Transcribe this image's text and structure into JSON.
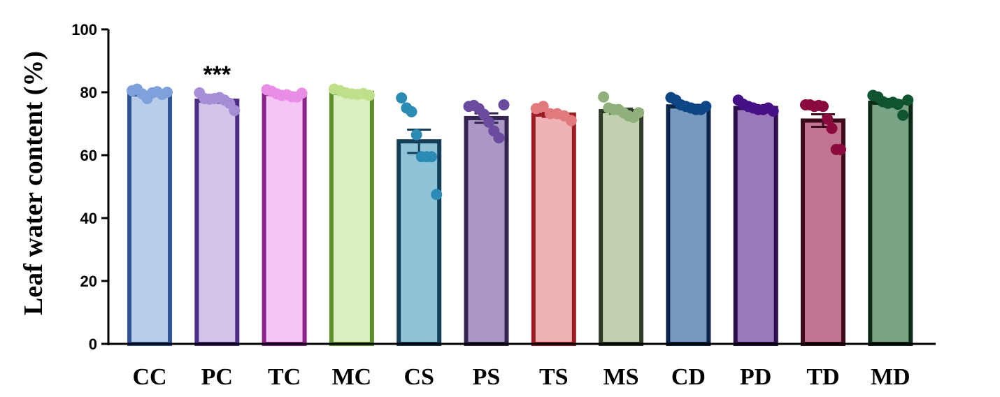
{
  "chart_data": {
    "type": "bar",
    "title": "",
    "xlabel": "",
    "ylabel": "Leaf water content (%)",
    "ylim": [
      0,
      100
    ],
    "yticks": [
      0,
      20,
      40,
      60,
      80,
      100
    ],
    "grid": false,
    "categories": [
      "CC",
      "PC",
      "TC",
      "MC",
      "CS",
      "PS",
      "TS",
      "MS",
      "CD",
      "PD",
      "TD",
      "MD"
    ],
    "values": [
      79.3,
      77.3,
      79.5,
      79.8,
      64.4,
      71.8,
      72.9,
      74.0,
      75.5,
      75.0,
      71.0,
      76.7
    ],
    "sem": [
      0.4,
      0.6,
      0.3,
      0.3,
      3.7,
      1.5,
      0.7,
      0.8,
      0.5,
      0.4,
      2.0,
      0.7
    ],
    "points": [
      [
        80.5,
        81.0,
        79.5,
        78.0,
        79.8,
        80.2,
        79.3,
        80.0
      ],
      [
        79.8,
        78.0,
        77.8,
        78.0,
        78.3,
        77.5,
        76.5,
        74.2
      ],
      [
        80.8,
        80.3,
        79.5,
        79.0,
        79.2,
        78.6,
        78.5,
        79.7
      ],
      [
        81.0,
        80.5,
        79.8,
        79.5,
        79.3,
        79.6,
        79.0
      ],
      [
        78.2,
        75.0,
        73.8,
        66.5,
        59.5,
        59.5,
        59.5,
        47.5
      ],
      [
        75.5,
        75.8,
        74.8,
        73.0,
        70.5,
        67.7,
        65.5,
        76.0
      ],
      [
        74.8,
        75.5,
        73.2,
        73.2,
        72.5,
        71.0
      ],
      [
        78.5,
        75.0,
        74.5,
        74.5,
        73.5,
        72.5,
        72.0,
        73.5
      ],
      [
        78.3,
        77.5,
        76.0,
        75.5,
        75.0,
        74.5,
        74.5,
        75.5
      ],
      [
        77.5,
        76.2,
        75.5,
        75.0,
        74.5,
        74.5,
        75.0,
        74.0
      ],
      [
        76.0,
        76.0,
        75.5,
        75.8,
        75.5,
        71.5,
        68.5,
        61.8,
        61.8
      ],
      [
        79.0,
        78.5,
        77.0,
        76.5,
        76.8,
        76.2,
        72.7,
        77.5
      ]
    ],
    "annotations": [
      {
        "category": "PC",
        "text": "***"
      }
    ],
    "colors": {
      "fill": [
        "#b8cdea",
        "#d2c3e8",
        "#f5c6f5",
        "#dcefc0",
        "#8fc3d8",
        "#ab98c7",
        "#efb3b5",
        "#c2d2b0",
        "#7799c0",
        "#9b78bb",
        "#c27592",
        "#79a385"
      ],
      "stroke": [
        "#2f5597",
        "#4b2d86",
        "#8b2189",
        "#5a8f2a",
        "#143d59",
        "#33254f",
        "#9b1c22",
        "#2f3a28",
        "#0b2448",
        "#2c0f4a",
        "#3e0b1c",
        "#0c2916"
      ],
      "dot": [
        "#7ea1dc",
        "#a58ed6",
        "#e98de6",
        "#bfe08a",
        "#2b8bb5",
        "#6a4b9e",
        "#e07a7e",
        "#8fb07a",
        "#0d4585",
        "#450f85",
        "#8a0a3d",
        "#0e5430"
      ]
    }
  }
}
